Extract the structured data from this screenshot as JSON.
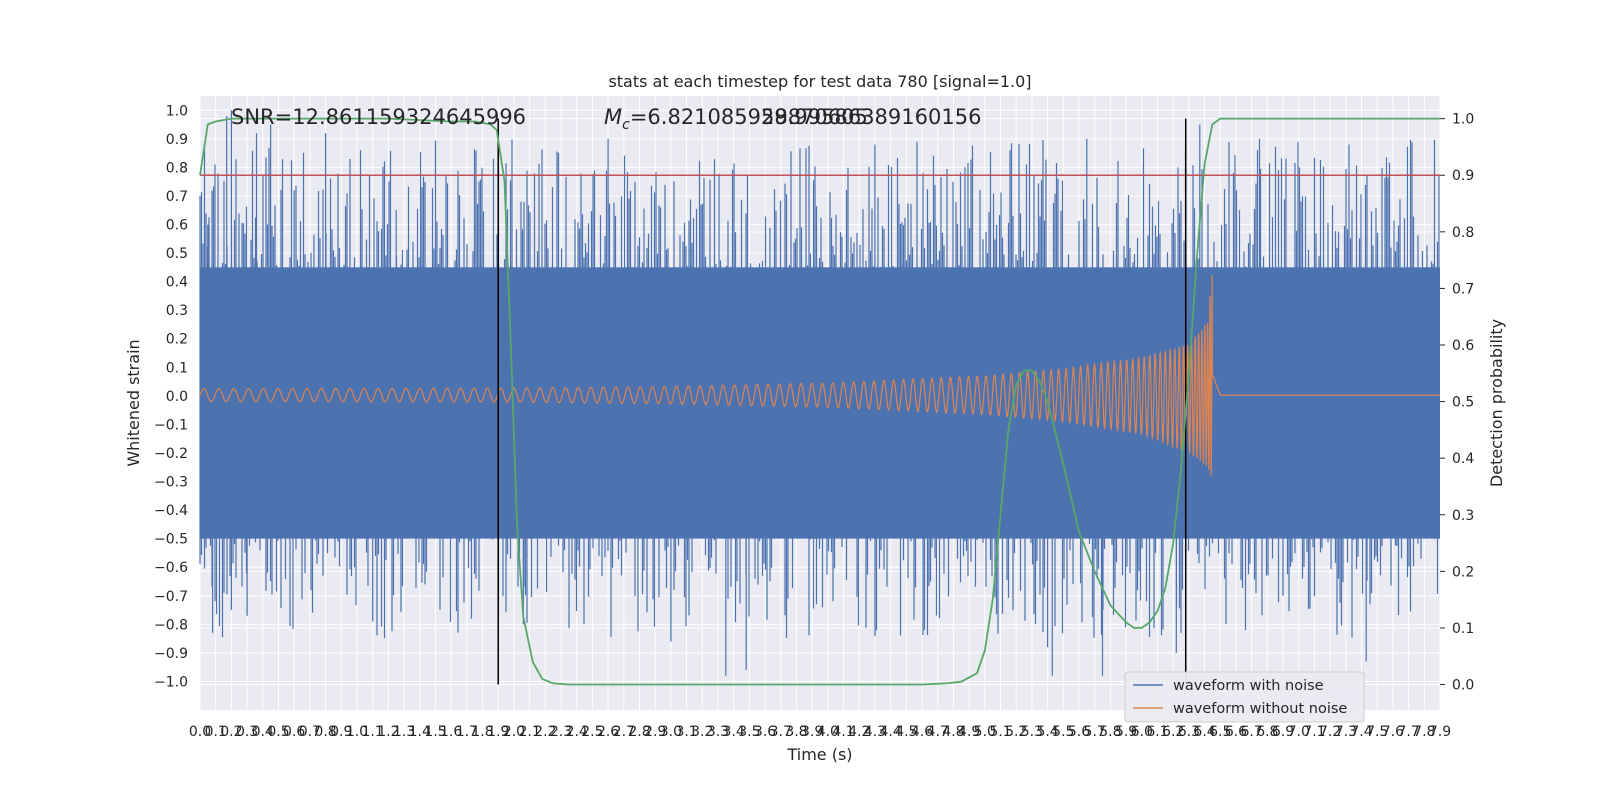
{
  "chart_data": {
    "type": "line",
    "title": "stats at each timestep for test data 780 [signal=1.0]",
    "xlabel": "Time (s)",
    "ylabel": "Whitened strain",
    "y2label": "Detection probability",
    "xlim": [
      0.0,
      7.9
    ],
    "ylim": [
      -1.1,
      1.05
    ],
    "y2lim": [
      -0.045,
      1.04
    ],
    "grid": true,
    "legend_position": "lower-right",
    "annotations": {
      "snr": "SNR=12.861159324645996",
      "mc_prefix": "M",
      "mc_sub": "c",
      "mc_value": "=6.821085929870605",
      "mc_overlap": "58.99586389160156"
    },
    "threshold_y2": 0.9,
    "vlines_x": [
      1.9,
      6.28
    ],
    "series": [
      {
        "name": "waveform with noise",
        "color": "#4c72b0",
        "envelope": {
          "x": [
            0.0,
            7.9
          ],
          "lower_typical": -0.5,
          "upper_typical": 0.45
        },
        "spikes": [
          {
            "x": 0.05,
            "y": 0.6
          },
          {
            "x": 0.08,
            "y": -0.83
          },
          {
            "x": 0.17,
            "y": 0.98
          },
          {
            "x": 0.2,
            "y": 1.0
          },
          {
            "x": 0.2,
            "y": -0.75
          },
          {
            "x": 0.3,
            "y": -0.77
          },
          {
            "x": 0.36,
            "y": 0.92
          },
          {
            "x": 0.45,
            "y": 0.95
          },
          {
            "x": 0.6,
            "y": 0.72
          },
          {
            "x": 0.8,
            "y": 0.92
          },
          {
            "x": 1.1,
            "y": -0.79
          },
          {
            "x": 1.25,
            "y": 0.65
          },
          {
            "x": 1.73,
            "y": -0.78
          },
          {
            "x": 1.87,
            "y": 0.83
          },
          {
            "x": 2.06,
            "y": -0.8
          },
          {
            "x": 2.6,
            "y": 0.9
          },
          {
            "x": 3.0,
            "y": -0.86
          },
          {
            "x": 3.35,
            "y": -0.98
          },
          {
            "x": 3.48,
            "y": -0.96
          },
          {
            "x": 4.3,
            "y": 0.88
          },
          {
            "x": 5.4,
            "y": -0.88
          },
          {
            "x": 5.43,
            "y": -0.98
          },
          {
            "x": 5.65,
            "y": 0.9
          },
          {
            "x": 5.75,
            "y": -0.98
          },
          {
            "x": 6.22,
            "y": -0.9
          },
          {
            "x": 6.28,
            "y": -0.92
          },
          {
            "x": 6.37,
            "y": 0.95
          },
          {
            "x": 6.75,
            "y": 0.9
          },
          {
            "x": 7.32,
            "y": 0.88
          },
          {
            "x": 7.43,
            "y": -0.93
          }
        ]
      },
      {
        "name": "waveform without noise",
        "color": "#dd8452",
        "envelope": {
          "x": [
            0.0,
            2.0,
            3.0,
            4.0,
            5.0,
            5.5,
            6.0,
            6.3,
            6.42,
            6.45,
            6.5,
            7.9
          ],
          "upper": [
            0.025,
            0.027,
            0.033,
            0.045,
            0.07,
            0.095,
            0.135,
            0.18,
            0.26,
            0.44,
            0.005,
            0.005
          ],
          "lower": [
            -0.02,
            -0.022,
            -0.028,
            -0.04,
            -0.065,
            -0.09,
            -0.135,
            -0.2,
            -0.25,
            -0.29,
            0.0,
            0.0
          ]
        }
      },
      {
        "name": "",
        "color": "#55a868",
        "axis": "right",
        "x": [
          0.0,
          0.05,
          0.1,
          0.2,
          0.4,
          0.8,
          1.2,
          1.6,
          1.75,
          1.85,
          1.89,
          1.94,
          1.98,
          2.02,
          2.06,
          2.12,
          2.18,
          2.25,
          2.35,
          2.5,
          3.0,
          4.0,
          4.6,
          4.75,
          4.85,
          4.95,
          5.0,
          5.05,
          5.1,
          5.15,
          5.2,
          5.25,
          5.3,
          5.35,
          5.4,
          5.5,
          5.6,
          5.7,
          5.8,
          5.9,
          5.95,
          6.0,
          6.05,
          6.1,
          6.15,
          6.2,
          6.25,
          6.3,
          6.35,
          6.4,
          6.45,
          6.5,
          6.6,
          7.0,
          7.9
        ],
        "y": [
          0.9,
          0.99,
          0.995,
          1.0,
          1.0,
          1.0,
          1.0,
          0.995,
          0.995,
          0.99,
          0.98,
          0.89,
          0.6,
          0.28,
          0.12,
          0.04,
          0.01,
          0.002,
          0.0,
          0.0,
          0.0,
          0.0,
          0.0,
          0.002,
          0.005,
          0.02,
          0.06,
          0.15,
          0.3,
          0.45,
          0.53,
          0.555,
          0.555,
          0.535,
          0.5,
          0.39,
          0.27,
          0.2,
          0.14,
          0.11,
          0.1,
          0.1,
          0.11,
          0.13,
          0.17,
          0.25,
          0.38,
          0.55,
          0.75,
          0.92,
          0.99,
          1.0,
          1.0,
          1.0,
          1.0
        ]
      }
    ]
  }
}
